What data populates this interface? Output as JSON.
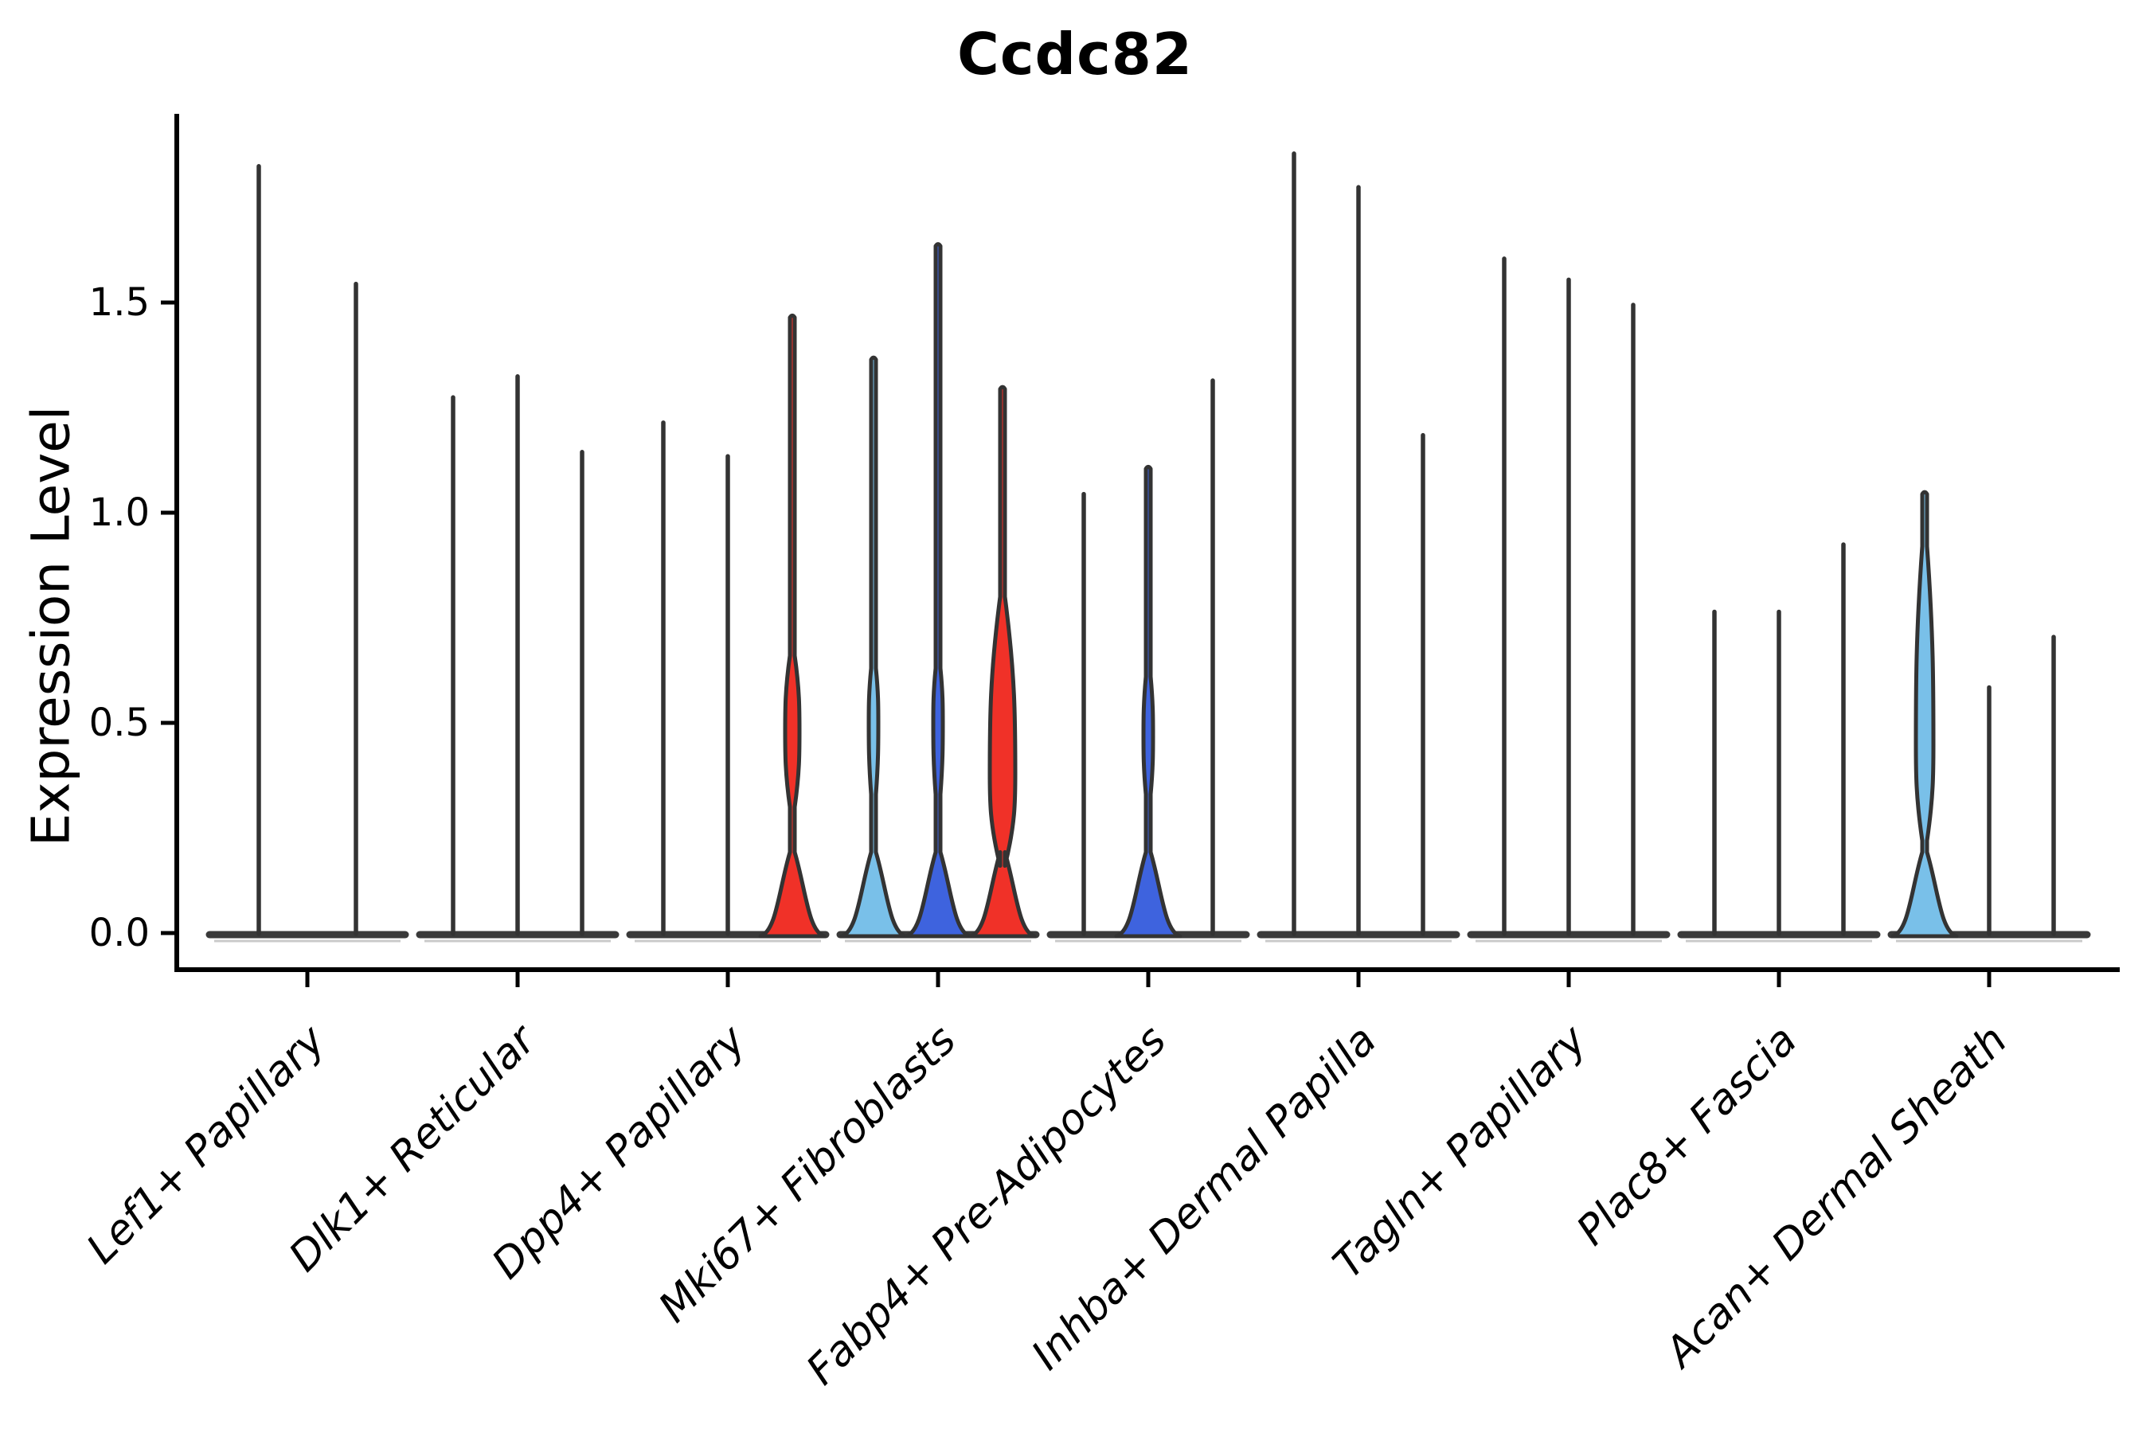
{
  "chart_data": {
    "type": "violin",
    "title": "Ccdc82",
    "xlabel": "",
    "ylabel": "Expression Level",
    "y_ticks": [
      "0.0",
      "0.5",
      "1.0",
      "1.5"
    ],
    "ylim": [
      0,
      1.95
    ],
    "grid": false,
    "legend": "none",
    "description": "Split violin plot of Ccdc82 expression per fibroblast subtype; most violins collapse to zero-line spikes, a few show colored density bulges near 0-0.6",
    "categories": [
      {
        "label": "Lef1+ Papillary",
        "violins": [
          {
            "max": 1.83,
            "fill": null
          },
          {
            "max": 1.55,
            "fill": null
          }
        ]
      },
      {
        "label": "Dlk1+ Reticular",
        "violins": [
          {
            "max": 1.28,
            "fill": null
          },
          {
            "max": 1.33,
            "fill": null
          },
          {
            "max": 1.15,
            "fill": null
          }
        ]
      },
      {
        "label": "Dpp4+ Papillary",
        "violins": [
          {
            "max": 1.22,
            "fill": null
          },
          {
            "max": 1.14,
            "fill": null
          },
          {
            "max": 1.47,
            "fill": "red",
            "bulge": {
              "lo": 0.3,
              "c": 0.48,
              "hi": 0.66,
              "hw": 9
            }
          }
        ]
      },
      {
        "label": "Mki67+ Fibroblasts",
        "violins": [
          {
            "max": 1.37,
            "fill": "light_blue",
            "bulge": {
              "lo": 0.33,
              "c": 0.5,
              "hi": 0.63,
              "hw": 6
            }
          },
          {
            "max": 1.64,
            "fill": "dark_blue",
            "bulge": {
              "lo": 0.33,
              "c": 0.5,
              "hi": 0.63,
              "hw": 6
            }
          },
          {
            "max": 1.3,
            "fill": "red",
            "bulge": {
              "lo": 0.16,
              "c": 0.38,
              "hi": 0.8,
              "hw": 16
            }
          }
        ]
      },
      {
        "label": "Fabp4+ Pre-Adipocytes",
        "violins": [
          {
            "max": 1.05,
            "fill": null
          },
          {
            "max": 1.11,
            "fill": "dark_blue",
            "bulge": {
              "lo": 0.33,
              "c": 0.47,
              "hi": 0.61,
              "hw": 6
            }
          },
          {
            "max": 1.32,
            "fill": null
          }
        ]
      },
      {
        "label": "Inhba+ Dermal Papilla",
        "violins": [
          {
            "max": 1.86,
            "fill": null
          },
          {
            "max": 1.78,
            "fill": null
          },
          {
            "max": 1.19,
            "fill": null
          }
        ]
      },
      {
        "label": "Tagln+ Papillary",
        "violins": [
          {
            "max": 1.61,
            "fill": null
          },
          {
            "max": 1.56,
            "fill": null
          },
          {
            "max": 1.5,
            "fill": null
          }
        ]
      },
      {
        "label": "Plac8+ Fascia",
        "violins": [
          {
            "max": 0.77,
            "fill": null
          },
          {
            "max": 0.77,
            "fill": null
          },
          {
            "max": 0.93,
            "fill": null
          }
        ]
      },
      {
        "label": "Acan+ Dermal Sheath",
        "violins": [
          {
            "max": 1.05,
            "fill": "light_blue",
            "bulge": {
              "lo": 0.22,
              "c": 0.45,
              "hi": 0.92,
              "hw": 11
            }
          },
          {
            "max": 0.59,
            "fill": null
          },
          {
            "max": 0.71,
            "fill": null
          }
        ]
      }
    ]
  },
  "colors": {
    "red": "#F03128",
    "light_blue": "#79C0E9",
    "dark_blue": "#3E63DE",
    "outline": "#333333",
    "baseline": "#3A3A3A",
    "axis": "#000000"
  }
}
